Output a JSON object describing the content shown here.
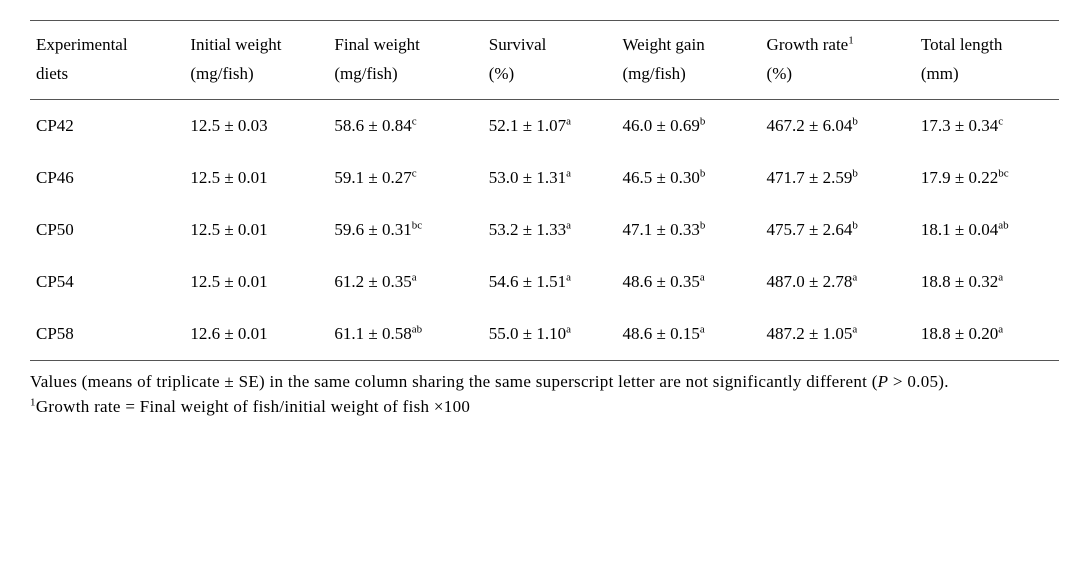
{
  "table": {
    "columns": {
      "diet": {
        "line1": "Experimental",
        "line2": "diets"
      },
      "initW": {
        "line1": "Initial weight",
        "line2": "(mg/fish)"
      },
      "finalW": {
        "line1": "Final weight",
        "line2": "(mg/fish)"
      },
      "survival": {
        "line1": "Survival",
        "line2": "(%)"
      },
      "wgain": {
        "line1": "Weight gain",
        "line2": "(mg/fish)"
      },
      "growth": {
        "line1": "Growth rate",
        "note": "1",
        "line2": "(%)"
      },
      "tlen": {
        "line1": "Total length",
        "line2": "(mm)"
      }
    },
    "rows": [
      {
        "diet": "CP42",
        "initW": {
          "val": "12.5 ± 0.03"
        },
        "finalW": {
          "val": "58.6 ± 0.84",
          "sup": "c"
        },
        "survival": {
          "val": "52.1 ± 1.07",
          "sup": "a"
        },
        "wgain": {
          "val": "46.0 ± 0.69",
          "sup": "b"
        },
        "growth": {
          "val": "467.2 ± 6.04",
          "sup": "b"
        },
        "tlen": {
          "val": "17.3 ± 0.34",
          "sup": "c"
        }
      },
      {
        "diet": "CP46",
        "initW": {
          "val": "12.5 ± 0.01"
        },
        "finalW": {
          "val": "59.1 ± 0.27",
          "sup": "c"
        },
        "survival": {
          "val": "53.0 ± 1.31",
          "sup": "a"
        },
        "wgain": {
          "val": "46.5 ± 0.30",
          "sup": "b"
        },
        "growth": {
          "val": "471.7 ± 2.59",
          "sup": "b"
        },
        "tlen": {
          "val": "17.9 ± 0.22",
          "sup": "bc"
        }
      },
      {
        "diet": "CP50",
        "initW": {
          "val": "12.5 ± 0.01"
        },
        "finalW": {
          "val": "59.6 ± 0.31",
          "sup": "bc"
        },
        "survival": {
          "val": "53.2 ± 1.33",
          "sup": "a"
        },
        "wgain": {
          "val": "47.1 ± 0.33",
          "sup": "b"
        },
        "growth": {
          "val": "475.7 ± 2.64",
          "sup": "b"
        },
        "tlen": {
          "val": "18.1 ± 0.04",
          "sup": "ab"
        }
      },
      {
        "diet": "CP54",
        "initW": {
          "val": "12.5 ± 0.01"
        },
        "finalW": {
          "val": "61.2 ± 0.35",
          "sup": "a"
        },
        "survival": {
          "val": "54.6 ± 1.51",
          "sup": "a"
        },
        "wgain": {
          "val": "48.6 ± 0.35",
          "sup": "a"
        },
        "growth": {
          "val": "487.0 ± 2.78",
          "sup": "a"
        },
        "tlen": {
          "val": "18.8 ± 0.32",
          "sup": "a"
        }
      },
      {
        "diet": "CP58",
        "initW": {
          "val": "12.6 ± 0.01"
        },
        "finalW": {
          "val": "61.1 ± 0.58",
          "sup": "ab"
        },
        "survival": {
          "val": "55.0 ± 1.10",
          "sup": "a"
        },
        "wgain": {
          "val": "48.6 ± 0.15",
          "sup": "a"
        },
        "growth": {
          "val": "487.2 ± 1.05",
          "sup": "a"
        },
        "tlen": {
          "val": "18.8 ± 0.20",
          "sup": "a"
        }
      }
    ]
  },
  "footnote": {
    "line1a": "Values (means of triplicate ± SE) in the same column sharing the same superscript letter are not significantly different (",
    "p": "P",
    "line1b": " > 0.05).",
    "note_sup": "1",
    "line2": "Growth rate = Final weight of fish/initial weight of fish ×100"
  },
  "style": {
    "border_color": "#555555",
    "text_color": "#000000",
    "background_color": "#ffffff",
    "body_fontsize": 17,
    "sup_fontsize": 11,
    "font_family": "Times New Roman"
  }
}
